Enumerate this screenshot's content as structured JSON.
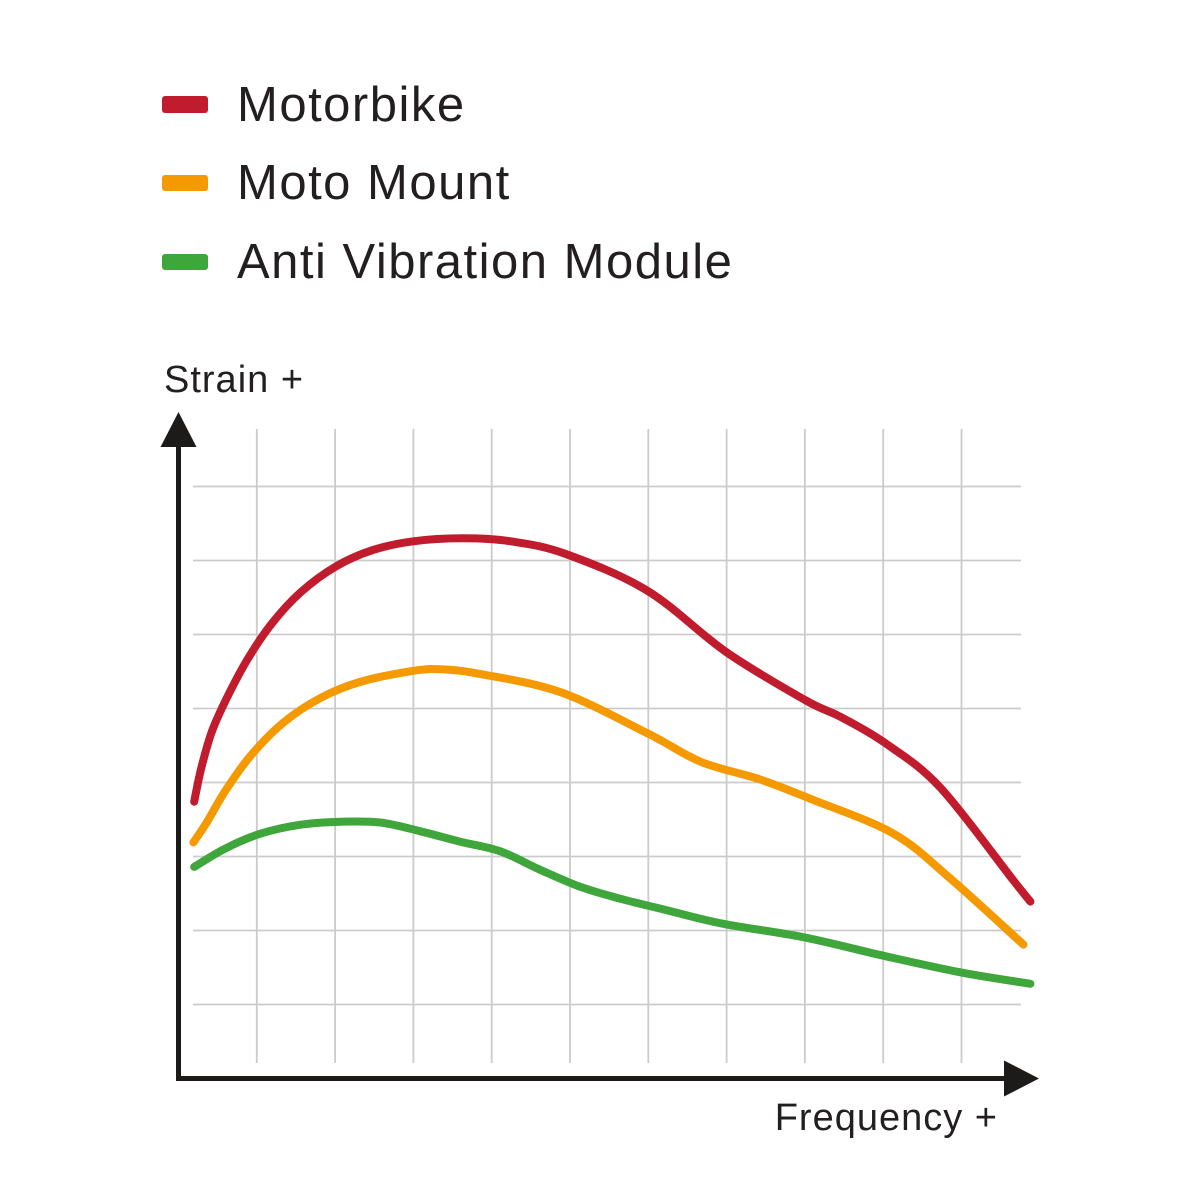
{
  "canvas": {
    "background": "#FFFFFF"
  },
  "legend": {
    "position": "top-left",
    "items": [
      {
        "label": "Motorbike",
        "color": "#C11B2E"
      },
      {
        "label": "Moto Mount",
        "color": "#F49A00"
      },
      {
        "label": "Anti Vibration Module",
        "color": "#3FA63C"
      }
    ]
  },
  "chart_data": {
    "type": "line",
    "title": "",
    "xlabel": "Frequency +",
    "ylabel": "Strain +",
    "grid": true,
    "legend_position": "top-left",
    "axes_note": "Axes are qualitative (no numeric ticks or tick labels). Point coordinates below are in grid-cell units measured from the axis origin; one unit = one background grid cell.",
    "x_range_grid_units": [
      0,
      11
    ],
    "y_range_grid_units": [
      0,
      9
    ],
    "series": [
      {
        "name": "Motorbike",
        "color": "#C11B2E",
        "points": [
          [
            0.2,
            3.74
          ],
          [
            0.29,
            4.19
          ],
          [
            0.43,
            4.7
          ],
          [
            0.64,
            5.19
          ],
          [
            0.89,
            5.68
          ],
          [
            1.2,
            6.16
          ],
          [
            1.56,
            6.57
          ],
          [
            2.01,
            6.92
          ],
          [
            2.48,
            7.14
          ],
          [
            3.0,
            7.26
          ],
          [
            3.63,
            7.3
          ],
          [
            4.24,
            7.26
          ],
          [
            4.94,
            7.09
          ],
          [
            5.99,
            6.59
          ],
          [
            7.0,
            5.76
          ],
          [
            8.01,
            5.11
          ],
          [
            8.45,
            4.89
          ],
          [
            9.03,
            4.53
          ],
          [
            9.73,
            3.93
          ],
          [
            10.66,
            2.68
          ],
          [
            10.88,
            2.39
          ]
        ]
      },
      {
        "name": "Moto Mount",
        "color": "#F49A00",
        "points": [
          [
            0.19,
            3.19
          ],
          [
            0.36,
            3.46
          ],
          [
            0.6,
            3.89
          ],
          [
            0.92,
            4.36
          ],
          [
            1.34,
            4.81
          ],
          [
            1.81,
            5.14
          ],
          [
            2.32,
            5.36
          ],
          [
            3.0,
            5.51
          ],
          [
            3.35,
            5.53
          ],
          [
            3.83,
            5.47
          ],
          [
            4.88,
            5.22
          ],
          [
            6.0,
            4.66
          ],
          [
            6.67,
            4.28
          ],
          [
            7.43,
            4.04
          ],
          [
            8.07,
            3.78
          ],
          [
            9.13,
            3.31
          ],
          [
            9.86,
            2.7
          ],
          [
            10.79,
            1.81
          ]
        ]
      },
      {
        "name": "Anti Vibration Module",
        "color": "#3FA63C",
        "points": [
          [
            0.2,
            2.86
          ],
          [
            0.6,
            3.11
          ],
          [
            1.05,
            3.31
          ],
          [
            1.56,
            3.43
          ],
          [
            2.07,
            3.47
          ],
          [
            2.58,
            3.46
          ],
          [
            3.09,
            3.34
          ],
          [
            3.6,
            3.2
          ],
          [
            4.11,
            3.07
          ],
          [
            4.62,
            2.82
          ],
          [
            5.13,
            2.59
          ],
          [
            5.64,
            2.43
          ],
          [
            6.25,
            2.27
          ],
          [
            6.96,
            2.09
          ],
          [
            7.98,
            1.91
          ],
          [
            9.0,
            1.66
          ],
          [
            10.01,
            1.43
          ],
          [
            10.88,
            1.28
          ]
        ]
      }
    ]
  }
}
